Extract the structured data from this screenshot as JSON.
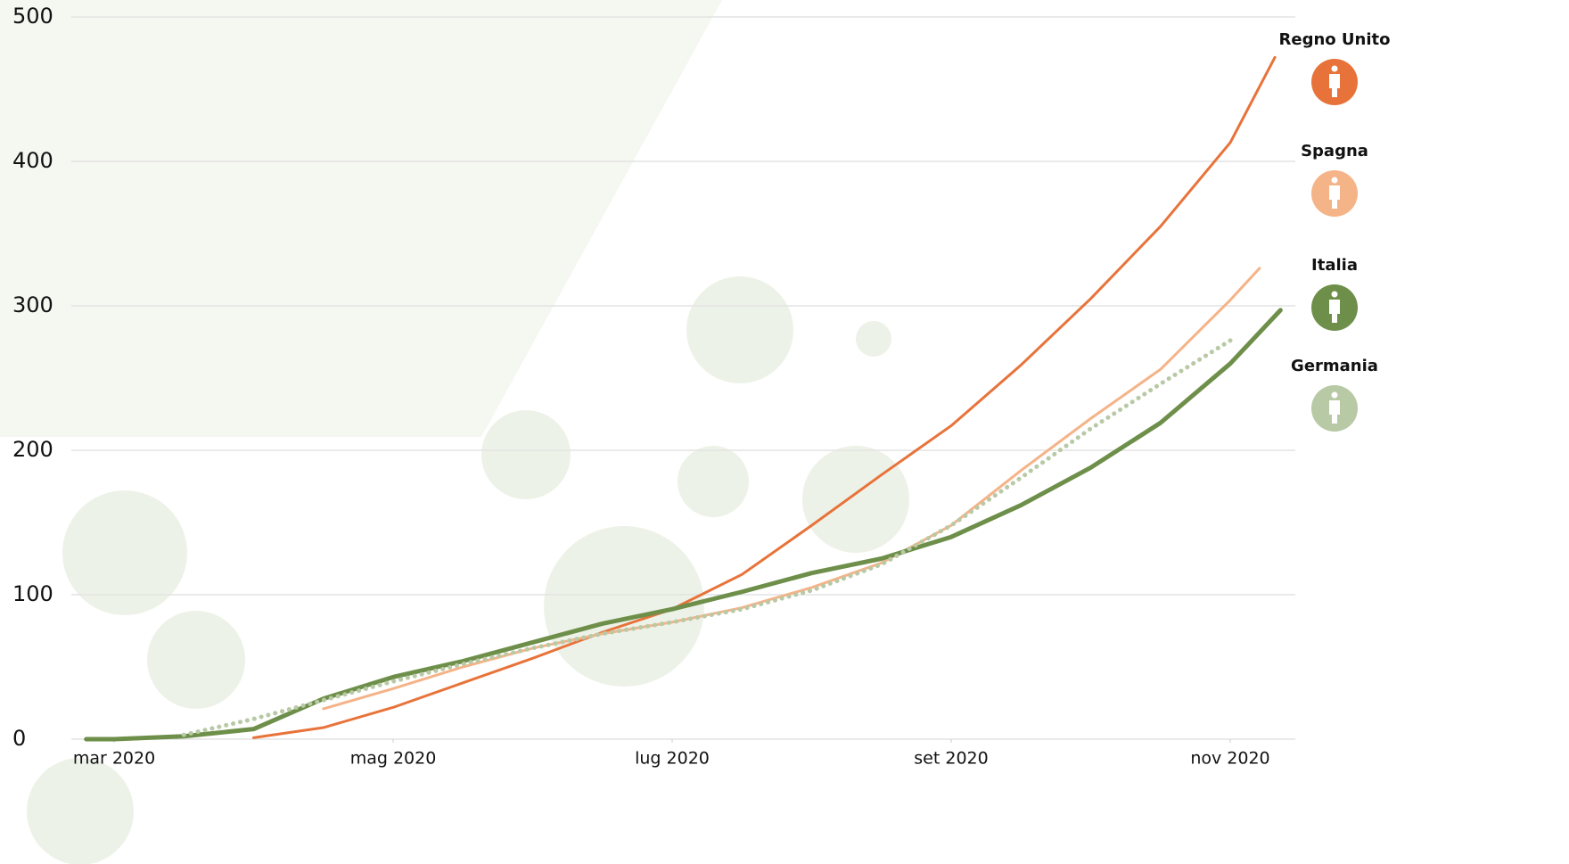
{
  "chart_data": {
    "type": "line",
    "xlim": [
      2.8,
      11.45
    ],
    "xticks": [
      {
        "value": 3,
        "label": "mar 2020"
      },
      {
        "value": 5,
        "label": "mag 2020"
      },
      {
        "value": 7,
        "label": "lug 2020"
      },
      {
        "value": 9,
        "label": "set 2020"
      },
      {
        "value": 11,
        "label": "nov 2020"
      }
    ],
    "ylim": [
      0,
      500
    ],
    "yticks": [
      0,
      100,
      200,
      300,
      400,
      500
    ],
    "grid": true,
    "legend": "right",
    "series": [
      {
        "name": "Regno Unito",
        "color": "#e8733a",
        "style": "solid",
        "width": 3,
        "x": [
          4.0,
          4.5,
          5.0,
          5.5,
          6.0,
          6.5,
          7.0,
          7.5,
          8.0,
          8.5,
          9.0,
          9.5,
          10.0,
          10.5,
          11.0,
          11.32
        ],
        "values": [
          1,
          8,
          22,
          39,
          56,
          74,
          90,
          114,
          148,
          183,
          217,
          259,
          305,
          355,
          413,
          472
        ]
      },
      {
        "name": "Spagna",
        "color": "#f5b388",
        "style": "solid",
        "width": 3,
        "x": [
          4.5,
          5.0,
          5.5,
          6.0,
          6.5,
          7.0,
          7.5,
          8.0,
          8.5,
          9.0,
          9.5,
          10.0,
          10.5,
          11.0,
          11.21
        ],
        "values": [
          21,
          35,
          50,
          63,
          73,
          81,
          91,
          105,
          122,
          148,
          186,
          222,
          256,
          304,
          326
        ]
      },
      {
        "name": "Italia",
        "color": "#6e8f4a",
        "style": "solid",
        "width": 5,
        "x": [
          2.8,
          3.0,
          3.5,
          4.0,
          4.5,
          5.0,
          5.5,
          6.0,
          6.5,
          7.0,
          7.5,
          8.0,
          8.5,
          9.0,
          9.5,
          10.0,
          10.5,
          11.0,
          11.36
        ],
        "values": [
          0,
          0,
          2,
          7,
          28,
          43,
          54,
          67,
          80,
          90,
          102,
          115,
          125,
          140,
          162,
          188,
          219,
          260,
          297
        ]
      },
      {
        "name": "Germania",
        "color": "#b8c9a5",
        "style": "dotted",
        "width": 5,
        "x": [
          3.5,
          4.0,
          4.5,
          5.0,
          5.5,
          6.0,
          6.5,
          7.0,
          7.5,
          8.0,
          8.5,
          9.0,
          9.5,
          10.0,
          10.5,
          11.0
        ],
        "values": [
          3,
          14,
          27,
          40,
          52,
          63,
          73,
          81,
          90,
          103,
          121,
          148,
          181,
          215,
          246,
          276
        ]
      }
    ]
  }
}
